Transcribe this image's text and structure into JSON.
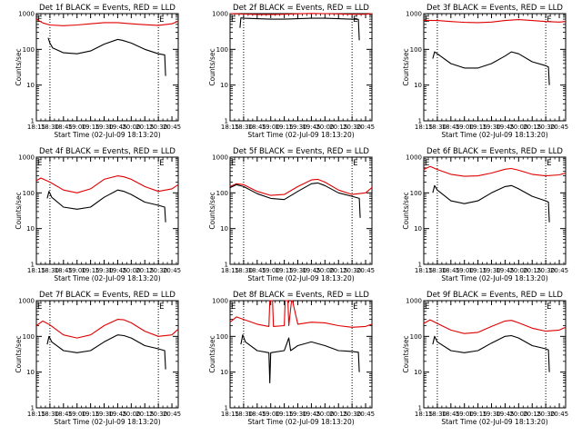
{
  "figure": {
    "start_time_label": "Start Time (02-Jul-09 18:13:20)",
    "ylabel": "Counts/sec",
    "x_tick_labels": [
      "18:15",
      "18:30",
      "18:45",
      "19:00",
      "19:15",
      "19:30",
      "19:45",
      "20:00",
      "20:15",
      "20:30",
      "20:45"
    ],
    "y_tick_labels": [
      "1",
      "10",
      "100",
      "1000"
    ],
    "marker_letter": "E",
    "colors": {
      "events": "#000000",
      "lld": "#e00000",
      "frame": "#000000"
    }
  },
  "chart_data": [
    {
      "type": "line",
      "title": "Det 1f BLACK = Events, RED = LLD",
      "xlabel": "Start Time (02-Jul-09 18:13:20)",
      "ylabel": "Counts/sec",
      "y_scale": "log",
      "ylim": [
        1,
        1000
      ],
      "xlim": [
        "18:15",
        "20:52"
      ],
      "x_ticks": [
        "18:15",
        "18:30",
        "18:45",
        "19:00",
        "19:15",
        "19:30",
        "19:45",
        "20:00",
        "20:15",
        "20:30",
        "20:45"
      ],
      "vertical_dotted_lines": [
        "18:30",
        "20:30"
      ],
      "marker_times": [
        "18:15",
        "20:30"
      ],
      "series": [
        {
          "name": "LLD",
          "color": "#e00000",
          "x": [
            "18:15",
            "18:22",
            "18:30",
            "18:45",
            "19:00",
            "19:15",
            "19:30",
            "19:45",
            "20:00",
            "20:15",
            "20:30",
            "20:45",
            "20:52"
          ],
          "y": [
            700,
            550,
            480,
            460,
            480,
            520,
            560,
            560,
            520,
            490,
            470,
            520,
            620
          ]
        },
        {
          "name": "Events",
          "color": "#000000",
          "x": [
            "18:28",
            "18:30",
            "18:33",
            "18:45",
            "19:00",
            "19:15",
            "19:30",
            "19:45",
            "19:50",
            "20:00",
            "20:15",
            "20:30",
            "20:37",
            "20:38"
          ],
          "y": [
            210,
            150,
            110,
            80,
            75,
            90,
            140,
            190,
            180,
            150,
            100,
            75,
            70,
            18
          ]
        }
      ]
    },
    {
      "type": "line",
      "title": "Det 2f BLACK = Events, RED = LLD",
      "xlabel": "Start Time (02-Jul-09 18:13:20)",
      "ylabel": "Counts/sec",
      "y_scale": "log",
      "ylim": [
        1,
        1000
      ],
      "xlim": [
        "18:15",
        "20:52"
      ],
      "x_ticks": [
        "18:15",
        "18:30",
        "18:45",
        "19:00",
        "19:15",
        "19:30",
        "19:45",
        "20:00",
        "20:15",
        "20:30",
        "20:45"
      ],
      "vertical_dotted_lines": [
        "18:30",
        "20:30"
      ],
      "marker_times": [
        "18:15",
        "20:30"
      ],
      "series": [
        {
          "name": "LLD",
          "color": "#e00000",
          "x": [
            "18:15",
            "18:30",
            "18:45",
            "19:00",
            "19:15",
            "19:30",
            "19:45",
            "20:00",
            "20:15",
            "20:30",
            "20:45",
            "20:52"
          ],
          "y": [
            1000,
            970,
            950,
            950,
            960,
            990,
            1010,
            1000,
            980,
            960,
            960,
            1000
          ]
        },
        {
          "name": "Events",
          "color": "#000000",
          "x": [
            "18:26",
            "18:27",
            "18:30",
            "18:45",
            "19:00",
            "19:15",
            "19:30",
            "19:45",
            "20:00",
            "20:15",
            "20:30",
            "20:37",
            "20:38"
          ],
          "y": [
            400,
            760,
            740,
            720,
            700,
            700,
            720,
            740,
            740,
            720,
            700,
            690,
            180
          ]
        }
      ]
    },
    {
      "type": "line",
      "title": "Det 3f BLACK = Events, RED = LLD",
      "xlabel": "Start Time (02-Jul-09 18:13:20)",
      "ylabel": "Counts/sec",
      "y_scale": "log",
      "ylim": [
        1,
        1000
      ],
      "xlim": [
        "18:15",
        "20:52"
      ],
      "x_ticks": [
        "18:15",
        "18:30",
        "18:45",
        "19:00",
        "19:15",
        "19:30",
        "19:45",
        "20:00",
        "20:15",
        "20:30",
        "20:45"
      ],
      "vertical_dotted_lines": [
        "18:30",
        "20:30"
      ],
      "marker_times": [
        "18:15",
        "20:30"
      ],
      "series": [
        {
          "name": "LLD",
          "color": "#e00000",
          "x": [
            "18:15",
            "18:30",
            "18:45",
            "19:00",
            "19:15",
            "19:30",
            "19:45",
            "20:00",
            "20:15",
            "20:30",
            "20:45",
            "20:52"
          ],
          "y": [
            650,
            640,
            600,
            570,
            560,
            580,
            640,
            680,
            640,
            600,
            580,
            600
          ]
        },
        {
          "name": "Events",
          "color": "#000000",
          "x": [
            "18:25",
            "18:27",
            "18:30",
            "18:45",
            "19:00",
            "19:15",
            "19:30",
            "19:45",
            "19:52",
            "20:00",
            "20:15",
            "20:30",
            "20:33",
            "20:34"
          ],
          "y": [
            55,
            85,
            75,
            40,
            30,
            30,
            40,
            65,
            85,
            75,
            45,
            35,
            32,
            10
          ]
        }
      ]
    },
    {
      "type": "line",
      "title": "Det 4f BLACK = Events, RED = LLD",
      "xlabel": "Start Time (02-Jul-09 18:13:20)",
      "ylabel": "Counts/sec",
      "y_scale": "log",
      "ylim": [
        1,
        1000
      ],
      "xlim": [
        "18:15",
        "20:52"
      ],
      "x_ticks": [
        "18:15",
        "18:30",
        "18:45",
        "19:00",
        "19:15",
        "19:30",
        "19:45",
        "20:00",
        "20:15",
        "20:30",
        "20:45"
      ],
      "vertical_dotted_lines": [
        "18:30",
        "20:30"
      ],
      "marker_times": [
        "18:15",
        "20:30"
      ],
      "series": [
        {
          "name": "LLD",
          "color": "#e00000",
          "x": [
            "18:15",
            "18:20",
            "18:30",
            "18:45",
            "19:00",
            "19:15",
            "19:30",
            "19:45",
            "19:52",
            "20:00",
            "20:15",
            "20:30",
            "20:45",
            "20:52"
          ],
          "y": [
            220,
            260,
            200,
            120,
            100,
            130,
            240,
            300,
            280,
            240,
            150,
            110,
            130,
            170
          ]
        },
        {
          "name": "Events",
          "color": "#000000",
          "x": [
            "18:27",
            "18:29",
            "18:32",
            "18:45",
            "19:00",
            "19:15",
            "19:30",
            "19:45",
            "19:52",
            "20:00",
            "20:15",
            "20:30",
            "20:37",
            "20:38"
          ],
          "y": [
            70,
            110,
            75,
            40,
            35,
            40,
            75,
            120,
            110,
            90,
            55,
            45,
            40,
            15
          ]
        }
      ]
    },
    {
      "type": "line",
      "title": "Det 5f BLACK = Events, RED = LLD",
      "xlabel": "Start Time (02-Jul-09 18:13:20)",
      "ylabel": "Counts/sec",
      "y_scale": "log",
      "ylim": [
        1,
        1000
      ],
      "xlim": [
        "18:15",
        "20:52"
      ],
      "x_ticks": [
        "18:15",
        "18:30",
        "18:45",
        "19:00",
        "19:15",
        "19:30",
        "19:45",
        "20:00",
        "20:15",
        "20:30",
        "20:45"
      ],
      "vertical_dotted_lines": [
        "18:30",
        "20:30"
      ],
      "marker_times": [
        "18:15",
        "20:30"
      ],
      "series": [
        {
          "name": "LLD",
          "color": "#e00000",
          "x": [
            "18:15",
            "18:22",
            "18:30",
            "18:45",
            "19:00",
            "19:15",
            "19:30",
            "19:45",
            "19:52",
            "20:00",
            "20:15",
            "20:30",
            "20:45",
            "20:52"
          ],
          "y": [
            150,
            180,
            170,
            110,
            85,
            90,
            150,
            230,
            240,
            200,
            120,
            90,
            100,
            140
          ]
        },
        {
          "name": "Events",
          "color": "#000000",
          "x": [
            "18:15",
            "18:22",
            "18:30",
            "18:45",
            "19:00",
            "19:15",
            "19:30",
            "19:45",
            "19:52",
            "20:00",
            "20:15",
            "20:30",
            "20:38",
            "20:39"
          ],
          "y": [
            140,
            170,
            150,
            95,
            70,
            65,
            110,
            180,
            190,
            160,
            100,
            80,
            70,
            20
          ]
        }
      ]
    },
    {
      "type": "line",
      "title": "Det 6f BLACK = Events, RED = LLD",
      "xlabel": "Start Time (02-Jul-09 18:13:20)",
      "ylabel": "Counts/sec",
      "y_scale": "log",
      "ylim": [
        1,
        1000
      ],
      "xlim": [
        "18:15",
        "20:52"
      ],
      "x_ticks": [
        "18:15",
        "18:30",
        "18:45",
        "19:00",
        "19:15",
        "19:30",
        "19:45",
        "20:00",
        "20:15",
        "20:30",
        "20:45"
      ],
      "vertical_dotted_lines": [
        "18:30",
        "20:30"
      ],
      "marker_times": [
        "18:15",
        "20:30"
      ],
      "series": [
        {
          "name": "LLD",
          "color": "#e00000",
          "x": [
            "18:15",
            "18:22",
            "18:30",
            "18:45",
            "19:00",
            "19:15",
            "19:30",
            "19:45",
            "19:52",
            "20:00",
            "20:15",
            "20:30",
            "20:45",
            "20:52"
          ],
          "y": [
            450,
            550,
            450,
            330,
            290,
            300,
            360,
            460,
            480,
            430,
            330,
            300,
            320,
            360
          ]
        },
        {
          "name": "Events",
          "color": "#000000",
          "x": [
            "18:25",
            "18:27",
            "18:30",
            "18:45",
            "19:00",
            "19:15",
            "19:30",
            "19:45",
            "19:52",
            "20:00",
            "20:15",
            "20:30",
            "20:33",
            "20:34"
          ],
          "y": [
            100,
            160,
            120,
            60,
            50,
            60,
            100,
            150,
            160,
            130,
            80,
            60,
            55,
            15
          ]
        }
      ]
    },
    {
      "type": "line",
      "title": "Det 7f BLACK = Events, RED = LLD",
      "xlabel": "Start Time (02-Jul-09 18:13:20)",
      "ylabel": "Counts/sec",
      "y_scale": "log",
      "ylim": [
        1,
        1000
      ],
      "xlim": [
        "18:15",
        "20:52"
      ],
      "x_ticks": [
        "18:15",
        "18:30",
        "18:45",
        "19:00",
        "19:15",
        "19:30",
        "19:45",
        "20:00",
        "20:15",
        "20:30",
        "20:45"
      ],
      "vertical_dotted_lines": [
        "18:30",
        "20:30"
      ],
      "marker_times": [
        "18:15",
        "20:30"
      ],
      "series": [
        {
          "name": "LLD",
          "color": "#e00000",
          "x": [
            "18:15",
            "18:22",
            "18:30",
            "18:45",
            "19:00",
            "19:15",
            "19:30",
            "19:45",
            "19:52",
            "20:00",
            "20:15",
            "20:30",
            "20:45",
            "20:52"
          ],
          "y": [
            200,
            270,
            210,
            110,
            90,
            110,
            200,
            300,
            290,
            240,
            140,
            100,
            110,
            160
          ]
        },
        {
          "name": "Events",
          "color": "#000000",
          "x": [
            "18:27",
            "18:29",
            "18:32",
            "18:45",
            "19:00",
            "19:15",
            "19:30",
            "19:45",
            "19:52",
            "20:00",
            "20:15",
            "20:30",
            "20:37",
            "20:38"
          ],
          "y": [
            60,
            100,
            70,
            40,
            35,
            40,
            70,
            110,
            105,
            90,
            55,
            45,
            40,
            12
          ]
        }
      ]
    },
    {
      "type": "line",
      "title": "Det 8f BLACK = Events, RED = LLD",
      "xlabel": "Start Time (02-Jul-09 18:13:20)",
      "ylabel": "Counts/sec",
      "y_scale": "log",
      "ylim": [
        1,
        1000
      ],
      "xlim": [
        "18:15",
        "20:52"
      ],
      "x_ticks": [
        "18:15",
        "18:30",
        "18:45",
        "19:00",
        "19:15",
        "19:30",
        "19:45",
        "20:00",
        "20:15",
        "20:30",
        "20:45"
      ],
      "vertical_dotted_lines": [
        "18:30",
        "20:30"
      ],
      "marker_times": [
        "18:15",
        "20:30"
      ],
      "series": [
        {
          "name": "LLD",
          "color": "#e00000",
          "x": [
            "18:15",
            "18:22",
            "18:30",
            "18:45",
            "18:58",
            "18:59",
            "19:02",
            "19:03",
            "19:15",
            "19:16",
            "19:19",
            "19:20",
            "19:23",
            "19:24",
            "19:30",
            "19:45",
            "20:00",
            "20:15",
            "20:30",
            "20:45",
            "20:52"
          ],
          "y": [
            250,
            350,
            300,
            220,
            190,
            1000,
            1000,
            190,
            200,
            1000,
            1000,
            200,
            1000,
            1000,
            220,
            250,
            240,
            200,
            180,
            190,
            220
          ]
        },
        {
          "name": "Events",
          "color": "#000000",
          "x": [
            "18:27",
            "18:29",
            "18:32",
            "18:45",
            "18:58",
            "18:59",
            "19:00",
            "19:15",
            "19:20",
            "19:22",
            "19:30",
            "19:45",
            "20:00",
            "20:15",
            "20:30",
            "20:37",
            "20:38"
          ],
          "y": [
            60,
            110,
            70,
            40,
            35,
            5,
            35,
            40,
            90,
            40,
            55,
            70,
            55,
            40,
            38,
            36,
            10
          ]
        }
      ]
    },
    {
      "type": "line",
      "title": "Det 9f BLACK = Events, RED = LLD",
      "xlabel": "Start Time (02-Jul-09 18:13:20)",
      "ylabel": "Counts/sec",
      "y_scale": "log",
      "ylim": [
        1,
        1000
      ],
      "xlim": [
        "18:15",
        "20:52"
      ],
      "x_ticks": [
        "18:15",
        "18:30",
        "18:45",
        "19:00",
        "19:15",
        "19:30",
        "19:45",
        "20:00",
        "20:15",
        "20:30",
        "20:45"
      ],
      "vertical_dotted_lines": [
        "18:30",
        "20:30"
      ],
      "marker_times": [
        "18:15",
        "20:30"
      ],
      "series": [
        {
          "name": "LLD",
          "color": "#e00000",
          "x": [
            "18:15",
            "18:22",
            "18:30",
            "18:45",
            "19:00",
            "19:15",
            "19:30",
            "19:45",
            "19:52",
            "20:00",
            "20:15",
            "20:30",
            "20:45",
            "20:52"
          ],
          "y": [
            230,
            290,
            230,
            150,
            120,
            130,
            190,
            270,
            280,
            240,
            170,
            140,
            150,
            180
          ]
        },
        {
          "name": "Events",
          "color": "#000000",
          "x": [
            "18:25",
            "18:27",
            "18:30",
            "18:45",
            "19:00",
            "19:15",
            "19:30",
            "19:45",
            "19:52",
            "20:00",
            "20:15",
            "20:30",
            "20:33",
            "20:34"
          ],
          "y": [
            60,
            100,
            70,
            40,
            35,
            40,
            65,
            100,
            105,
            90,
            55,
            45,
            42,
            10
          ]
        }
      ]
    }
  ]
}
